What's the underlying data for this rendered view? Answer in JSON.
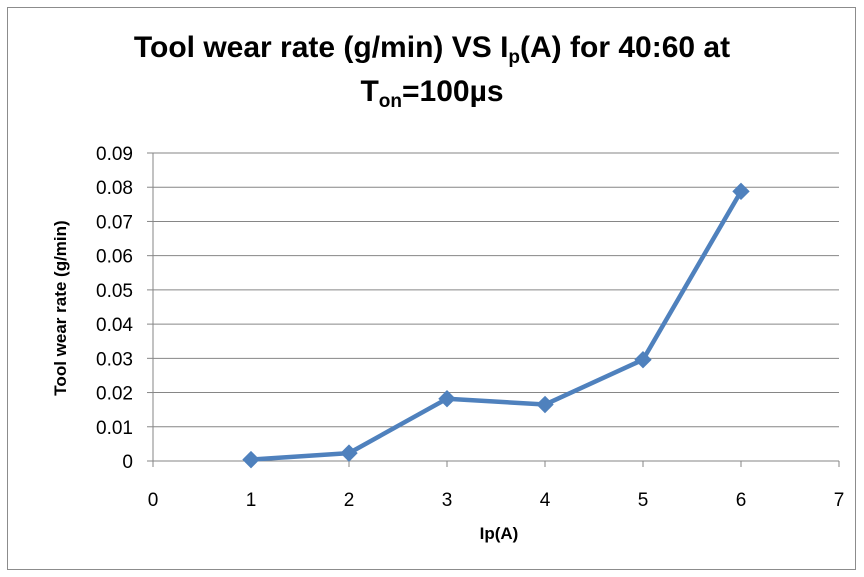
{
  "chart_data": {
    "type": "line",
    "title": {
      "part1": "Tool wear  rate (g/min) VS I",
      "sub1": "p",
      "part2": "(A) for 40:60 at",
      "part3": "T",
      "sub2": "on",
      "part4": "=100µs"
    },
    "xlabel": "Ip(A)",
    "ylabel": "Tool wear  rate (g/min)",
    "xlim": [
      0,
      7
    ],
    "ylim": [
      0,
      0.09
    ],
    "x_ticks": [
      "0",
      "1",
      "2",
      "3",
      "4",
      "5",
      "6",
      "7"
    ],
    "y_ticks": [
      "0",
      "0.01",
      "0.02",
      "0.03",
      "0.04",
      "0.05",
      "0.06",
      "0.07",
      "0.08",
      "0.09"
    ],
    "grid": true,
    "legend": "none",
    "series": [
      {
        "color": "#4f81bd",
        "marker": "diamond",
        "x": [
          1,
          2,
          3,
          4,
          5,
          6
        ],
        "y": [
          0.0004,
          0.0023,
          0.0182,
          0.0165,
          0.0296,
          0.0788
        ]
      }
    ]
  }
}
